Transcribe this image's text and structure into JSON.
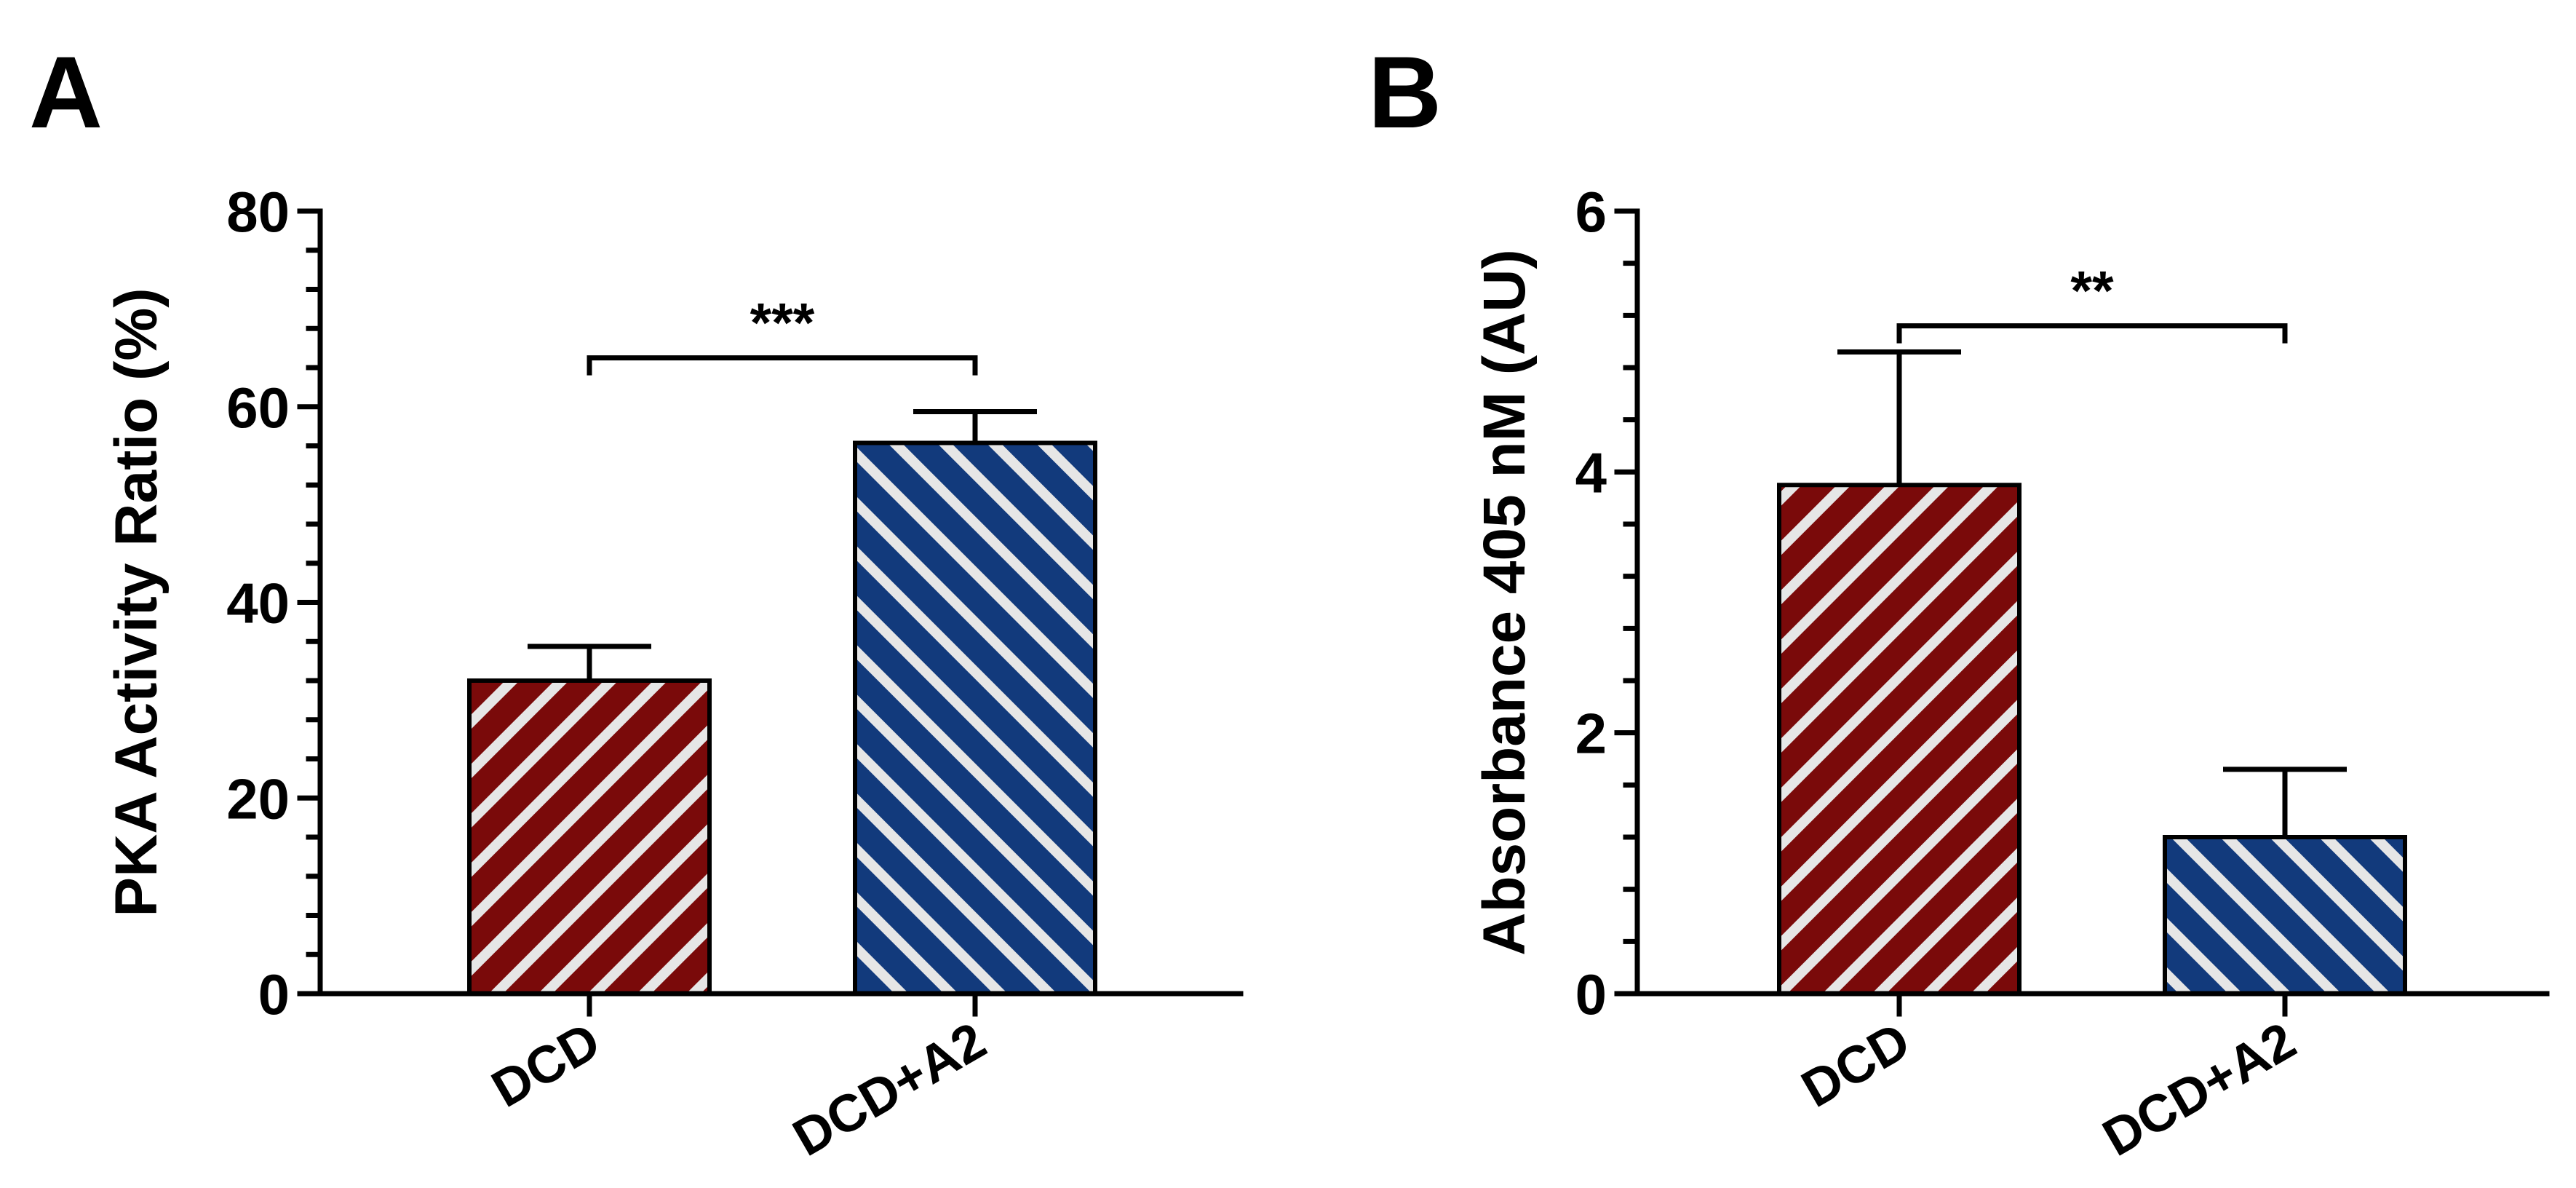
{
  "chart_data": [
    {
      "panel": "A",
      "type": "bar",
      "categories": [
        "DCD",
        "DCD+A2"
      ],
      "values": [
        32,
        56.3
      ],
      "errors": [
        3.5,
        3.2
      ],
      "colors": [
        "#7a0a0a",
        "#123a7c"
      ],
      "ylabel": "PKA Activity Ratio (%)",
      "ylim": [
        0,
        80
      ],
      "yticks": [
        0,
        20,
        40,
        60,
        80
      ],
      "ytick_labels": [
        "0",
        "20",
        "40",
        "60",
        "80"
      ],
      "minor_ticks_per_major": 4,
      "significance": {
        "label": "***",
        "between": [
          0,
          1
        ],
        "level": 65
      }
    },
    {
      "panel": "B",
      "type": "bar",
      "categories": [
        "DCD",
        "DCD+A2"
      ],
      "values": [
        3.9,
        1.2
      ],
      "errors": [
        1.02,
        0.52
      ],
      "colors": [
        "#7a0a0a",
        "#123a7c"
      ],
      "ylabel": "Absorbance 405 nM (AU)",
      "ylim": [
        0,
        6
      ],
      "yticks": [
        0,
        2,
        4,
        6
      ],
      "ytick_labels": [
        "0",
        "2",
        "4",
        "6"
      ],
      "minor_ticks_per_major": 4,
      "significance": {
        "label": "**",
        "between": [
          0,
          1
        ],
        "level": 5.12
      }
    }
  ]
}
